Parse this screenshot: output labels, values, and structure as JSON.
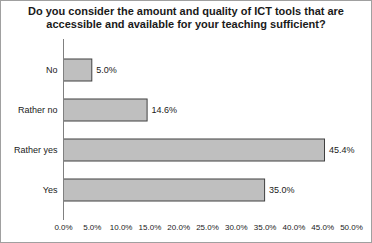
{
  "chart_data": {
    "type": "bar",
    "orientation": "horizontal",
    "title": "Do you consider the amount and quality of ICT tools that are accessible and available for your teaching sufficient?",
    "categories": [
      "No",
      "Rather no",
      "Rather yes",
      "Yes"
    ],
    "values": [
      5.0,
      14.6,
      45.4,
      35.0
    ],
    "value_labels": [
      "5.0%",
      "14.6%",
      "45.4%",
      "35.0%"
    ],
    "data_labels": true,
    "color": "#bfbfbf",
    "xlim": [
      0,
      50
    ],
    "xticks": [
      {
        "value": 0,
        "label": "0.0%"
      },
      {
        "value": 5,
        "label": "5.0%"
      },
      {
        "value": 10,
        "label": "10.0%"
      },
      {
        "value": 15,
        "label": "15.0%"
      },
      {
        "value": 20,
        "label": "20.0%"
      },
      {
        "value": 25,
        "label": "25.0%"
      },
      {
        "value": 30,
        "label": "30.0%"
      },
      {
        "value": 35,
        "label": "35.0%"
      },
      {
        "value": 40,
        "label": "40.0%"
      },
      {
        "value": 45,
        "label": "45.0%"
      },
      {
        "value": 50,
        "label": "50.0%"
      }
    ],
    "grid": false
  }
}
